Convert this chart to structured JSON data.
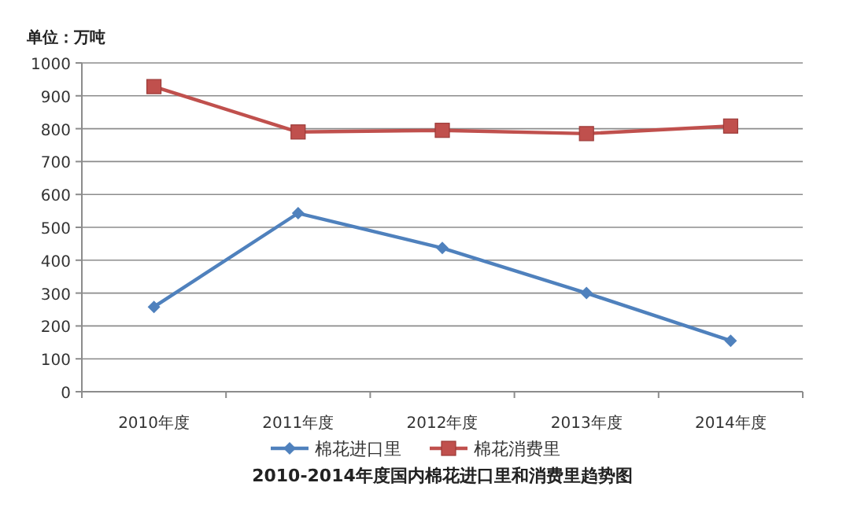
{
  "chart_data": {
    "type": "line",
    "title": "2010-2014年度国内棉花进口里和消费里趋势图",
    "ylabel": "单位：万吨",
    "categories": [
      "2010年度",
      "2011年度",
      "2012年度",
      "2013年度",
      "2014年度"
    ],
    "series": [
      {
        "name": "棉花进口里",
        "color": "#4f81bd",
        "marker": "diamond",
        "values": [
          258,
          543,
          437,
          300,
          155
        ]
      },
      {
        "name": "棉花消费里",
        "color": "#c0504d",
        "marker": "square",
        "values": [
          928,
          790,
          795,
          785,
          808
        ]
      }
    ],
    "ylim": [
      0,
      1000
    ],
    "yticks": [
      0,
      100,
      200,
      300,
      400,
      500,
      600,
      700,
      800,
      900,
      1000
    ],
    "grid": "y",
    "legend": "bottom"
  }
}
